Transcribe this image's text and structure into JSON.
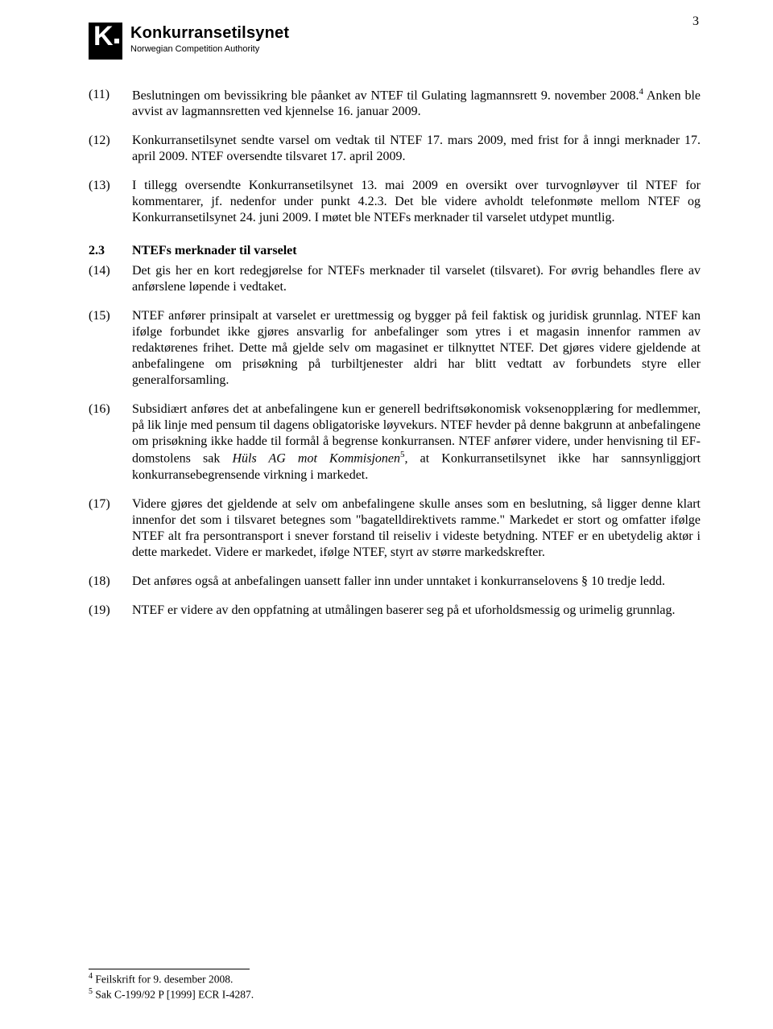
{
  "page_number": "3",
  "brand": {
    "main": "Konkurransetilsynet",
    "sub": "Norwegian Competition Authority",
    "logo_letter": "K"
  },
  "section": {
    "number": "2.3",
    "title": "NTEFs merknader til varselet"
  },
  "paragraphs": {
    "p11": {
      "num": "(11)",
      "text_a": "Beslutningen om bevissikring ble påanket av NTEF til Gulating lagmannsrett 9. november 2008.",
      "sup": "4",
      "text_b": " Anken ble avvist av lagmannsretten ved kjennelse 16. januar 2009."
    },
    "p12": {
      "num": "(12)",
      "text": "Konkurransetilsynet sendte varsel om vedtak til NTEF 17. mars 2009, med frist for å inngi merknader 17. april 2009. NTEF oversendte tilsvaret 17. april 2009."
    },
    "p13": {
      "num": "(13)",
      "text": "I tillegg oversendte Konkurransetilsynet 13. mai 2009 en oversikt over turvognløyver til NTEF for kommentarer, jf. nedenfor under punkt 4.2.3. Det ble videre avholdt telefonmøte mellom NTEF og Konkurransetilsynet 24. juni 2009. I møtet ble NTEFs merknader til varselet utdypet muntlig."
    },
    "p14": {
      "num": "(14)",
      "text": "Det gis her en kort redegjørelse for NTEFs merknader til varselet (tilsvaret). For øvrig behandles flere av anførslene løpende i vedtaket."
    },
    "p15": {
      "num": "(15)",
      "text": "NTEF anfører prinsipalt at varselet er urettmessig og bygger på feil faktisk og juridisk grunnlag. NTEF kan ifølge forbundet ikke gjøres ansvarlig for anbefalinger som ytres i et magasin innenfor rammen av redaktørenes frihet. Dette må gjelde selv om magasinet er tilknyttet NTEF. Det gjøres videre gjeldende at anbefalingene om prisøkning på turbiltjenester aldri har blitt vedtatt av forbundets styre eller generalforsamling."
    },
    "p16": {
      "num": "(16)",
      "text_a": "Subsidiært anføres det at anbefalingene kun er generell bedriftsøkonomisk voksenopplæring for medlemmer, på lik linje med pensum til dagens obligatoriske løyvekurs. NTEF hevder på denne bakgrunn at anbefalingene om prisøkning ikke hadde til formål å begrense konkurransen. NTEF anfører videre, under henvisning til EF-domstolens sak ",
      "italic": "Hüls AG mot Kommisjonen",
      "sup": "5",
      "text_b": ", at Konkurransetilsynet ikke har sannsynliggjort konkurransebegrensende virkning i markedet."
    },
    "p17": {
      "num": "(17)",
      "text": "Videre gjøres det gjeldende at selv om anbefalingene skulle anses som en beslutning, så ligger denne klart innenfor det som i tilsvaret betegnes som \"bagatelldirektivets ramme.\" Markedet er stort og omfatter ifølge NTEF alt fra persontransport i snever forstand til reiseliv i videste betydning. NTEF er en ubetydelig aktør i dette markedet. Videre er markedet, ifølge NTEF, styrt av større markedskrefter."
    },
    "p18": {
      "num": "(18)",
      "text": "Det anføres også at anbefalingen uansett faller inn under unntaket i konkurranselovens § 10 tredje ledd."
    },
    "p19": {
      "num": "(19)",
      "text": "NTEF er videre av den oppfatning at utmålingen baserer seg på et uforholdsmessig og urimelig grunnlag."
    }
  },
  "footnotes": {
    "f4": {
      "marker": "4",
      "text": " Feilskrift for 9. desember 2008."
    },
    "f5": {
      "marker": "5",
      "text": " Sak C-199/92 P [1999] ECR I-4287."
    }
  }
}
